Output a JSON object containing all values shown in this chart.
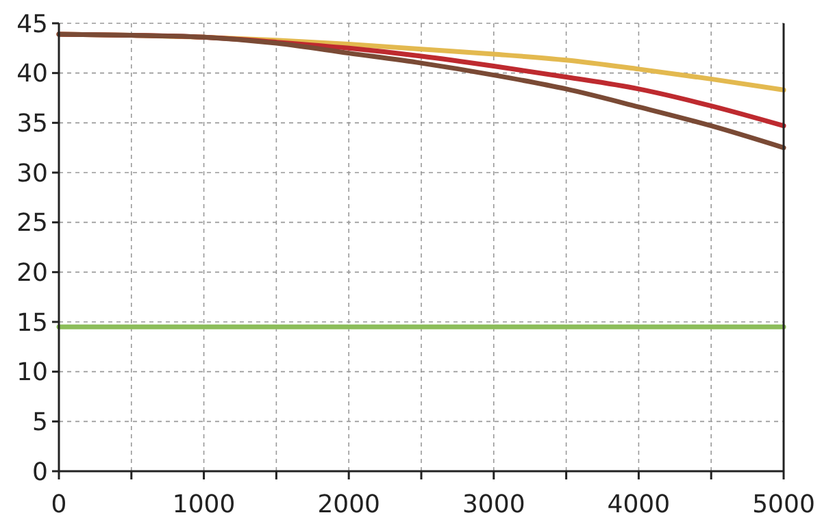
{
  "chart_data": {
    "type": "line",
    "x": [
      0,
      500,
      1000,
      1500,
      2000,
      2500,
      3000,
      3500,
      4000,
      4500,
      5000
    ],
    "series": [
      {
        "color": "#e3b94f",
        "values": [
          43.9,
          43.8,
          43.6,
          43.3,
          42.9,
          42.4,
          41.9,
          41.3,
          40.4,
          39.4,
          38.3
        ]
      },
      {
        "color": "#be2a2f",
        "values": [
          43.9,
          43.8,
          43.6,
          43.1,
          42.5,
          41.7,
          40.7,
          39.6,
          38.4,
          36.7,
          34.7
        ]
      },
      {
        "color": "#7a4a35",
        "values": [
          43.9,
          43.8,
          43.6,
          43.0,
          42.0,
          41.0,
          39.8,
          38.4,
          36.6,
          34.7,
          32.5
        ]
      },
      {
        "color": "#8cbd5a",
        "x": [
          0,
          5000
        ],
        "values": [
          14.5,
          14.5
        ]
      }
    ],
    "xlim": [
      0,
      5000
    ],
    "xticks": [
      0,
      {
        "value": 500,
        "label": null
      },
      1000,
      {
        "value": 1500,
        "label": null
      },
      2000,
      {
        "value": 2500,
        "label": null
      },
      3000,
      {
        "value": 3500,
        "label": null
      },
      4000,
      {
        "value": 4500,
        "label": null
      },
      5000
    ],
    "ylim": [
      0,
      45
    ],
    "yticks": [
      0,
      5,
      10,
      15,
      20,
      25,
      30,
      35,
      40,
      45
    ],
    "grid": true,
    "marker": "none",
    "line_style": "solid"
  }
}
